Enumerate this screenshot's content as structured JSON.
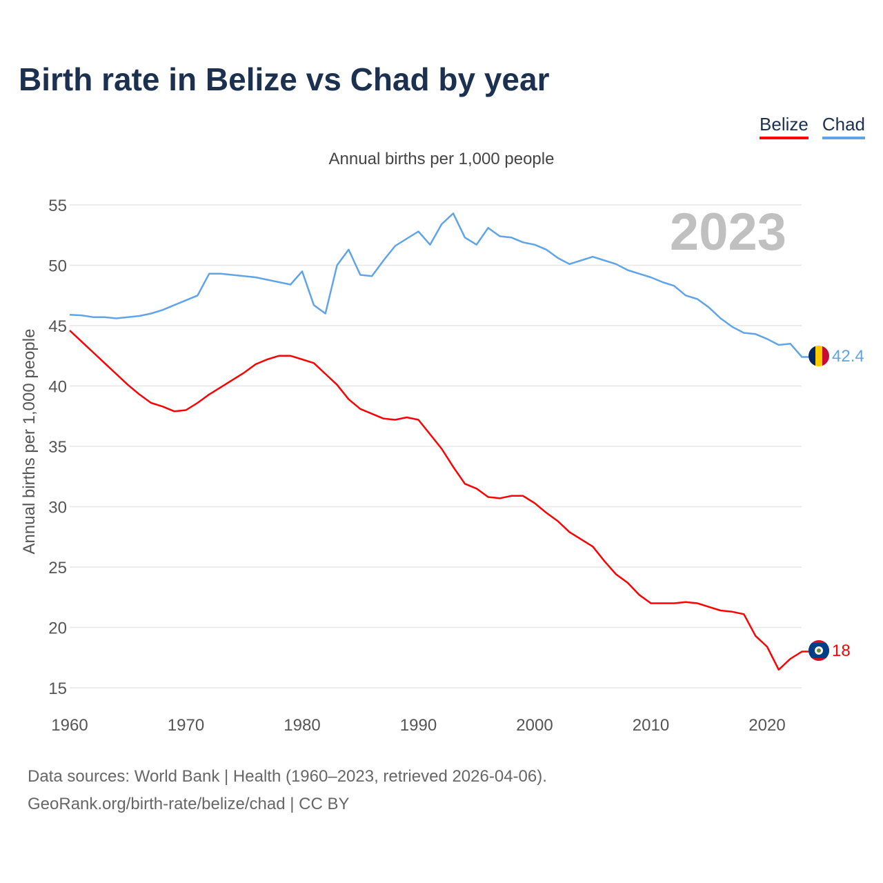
{
  "chart_data": {
    "type": "line",
    "title": "Birth rate in Belize vs Chad by year",
    "subtitle": "Annual births per 1,000 people",
    "ylabel": "Annual births per 1,000 people",
    "xlabel": "",
    "year_label": "2023",
    "xlim": [
      1960,
      2023
    ],
    "ylim": [
      15,
      55
    ],
    "xticks": [
      1960,
      1970,
      1980,
      1990,
      2000,
      2010,
      2020
    ],
    "yticks": [
      15,
      20,
      25,
      30,
      35,
      40,
      45,
      50,
      55
    ],
    "grid": true,
    "legend_position": "top-right",
    "x_start": 1960,
    "series": [
      {
        "name": "Belize",
        "color": "#ff0000",
        "end_label": "18",
        "values": [
          44.6,
          43.7,
          42.8,
          41.9,
          41.0,
          40.1,
          39.3,
          38.6,
          38.3,
          37.9,
          38.0,
          38.6,
          39.3,
          39.9,
          40.5,
          41.1,
          41.8,
          42.2,
          42.5,
          42.5,
          42.2,
          41.9,
          41.0,
          40.1,
          38.9,
          38.1,
          37.7,
          37.3,
          37.2,
          37.4,
          37.2,
          36.0,
          34.8,
          33.3,
          31.9,
          31.5,
          30.8,
          30.7,
          30.9,
          30.9,
          30.3,
          29.5,
          28.8,
          27.9,
          27.3,
          26.7,
          25.5,
          24.4,
          23.7,
          22.7,
          22.0,
          22.0,
          22.0,
          22.1,
          22.0,
          21.7,
          21.4,
          21.3,
          21.1,
          19.3,
          18.4,
          16.5,
          17.4,
          18.0
        ]
      },
      {
        "name": "Chad",
        "color": "#5fa4e8",
        "end_label": "42.4",
        "values": [
          45.9,
          45.85,
          45.7,
          45.7,
          45.6,
          45.7,
          45.8,
          46.0,
          46.3,
          46.7,
          47.1,
          47.5,
          49.3,
          49.3,
          49.2,
          49.1,
          49.0,
          48.8,
          48.6,
          48.4,
          49.5,
          46.7,
          46.0,
          50.0,
          51.3,
          49.2,
          49.1,
          50.4,
          51.6,
          52.2,
          52.8,
          51.7,
          53.4,
          54.3,
          52.3,
          51.7,
          53.1,
          52.4,
          52.3,
          51.9,
          51.7,
          51.3,
          50.6,
          50.1,
          50.4,
          50.7,
          50.4,
          50.1,
          49.6,
          49.3,
          49.0,
          48.6,
          48.3,
          47.5,
          47.2,
          46.5,
          45.6,
          44.9,
          44.4,
          44.3,
          43.9,
          43.4,
          43.5,
          42.4
        ]
      }
    ]
  },
  "source": {
    "line1": "Data sources: World Bank | Health (1960–2023, retrieved 2026-04-06).",
    "line2": "GeoRank.org/birth-rate/belize/chad | CC BY"
  }
}
